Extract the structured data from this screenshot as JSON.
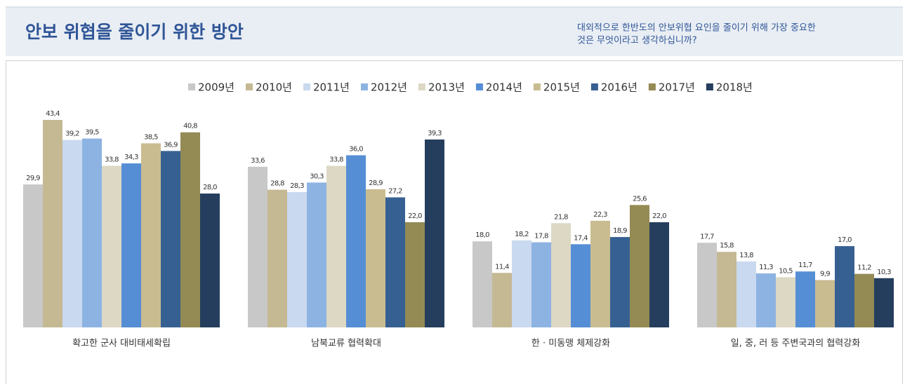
{
  "header": {
    "title": "안보 위협을 줄이기 위한 방안",
    "question": [
      "대외적으로 한반도의 안보위협 요인을 줄이기 위해 가장 중요한",
      "것은 무엇이라고 생각하십니까?"
    ]
  },
  "chart_data": {
    "type": "bar",
    "categories": [
      "확고한 군사 대비태세확립",
      "남북교류 협력확대",
      "한 · 미동맹 체제강화",
      "일, 중, 러 등 주변국과의 협력강화"
    ],
    "legend": "top",
    "series": [
      {
        "name": "2009년",
        "color": "#c8c8c8",
        "values": [
          29.9,
          33.6,
          18.0,
          17.7
        ],
        "value_labels": [
          "29,9",
          "33,6",
          "18,0",
          "17,7"
        ]
      },
      {
        "name": "2010년",
        "color": "#c4b993",
        "values": [
          43.4,
          28.8,
          11.4,
          15.8
        ],
        "value_labels": [
          "43,4",
          "28,8",
          "11,4",
          "15,8"
        ]
      },
      {
        "name": "2011년",
        "color": "#c9d9ef",
        "values": [
          39.2,
          28.3,
          18.2,
          13.8
        ],
        "value_labels": [
          "39,2",
          "28,3",
          "18,2",
          "13,8"
        ]
      },
      {
        "name": "2012년",
        "color": "#8db3e2",
        "values": [
          39.5,
          30.3,
          17.8,
          11.3
        ],
        "value_labels": [
          "39,5",
          "30,3",
          "17,8",
          "11,3"
        ]
      },
      {
        "name": "2013년",
        "color": "#ddd8c4",
        "values": [
          33.8,
          33.8,
          21.8,
          10.5
        ],
        "value_labels": [
          "33,8",
          "33,8",
          "21,8",
          "10,5"
        ]
      },
      {
        "name": "2014년",
        "color": "#558ed5",
        "values": [
          34.3,
          36.0,
          17.4,
          11.7
        ],
        "value_labels": [
          "34,3",
          "36,0",
          "17,4",
          "11,7"
        ]
      },
      {
        "name": "2015년",
        "color": "#c9bc91",
        "values": [
          38.5,
          28.9,
          22.3,
          9.9
        ],
        "value_labels": [
          "38,5",
          "28,9",
          "22,3",
          "9,9"
        ]
      },
      {
        "name": "2016년",
        "color": "#376092",
        "values": [
          36.9,
          27.2,
          18.9,
          17.0
        ],
        "value_labels": [
          "36,9",
          "27,2",
          "18,9",
          "17,0"
        ]
      },
      {
        "name": "2017년",
        "color": "#948a54",
        "values": [
          40.8,
          22.0,
          25.6,
          11.2
        ],
        "value_labels": [
          "40,8",
          "22,0",
          "25,6",
          "11,2"
        ]
      },
      {
        "name": "2018년",
        "color": "#263e5e",
        "values": [
          28.0,
          39.3,
          22.0,
          10.3
        ],
        "value_labels": [
          "28,0",
          "39,3",
          "22,0",
          "10,3"
        ]
      }
    ]
  }
}
